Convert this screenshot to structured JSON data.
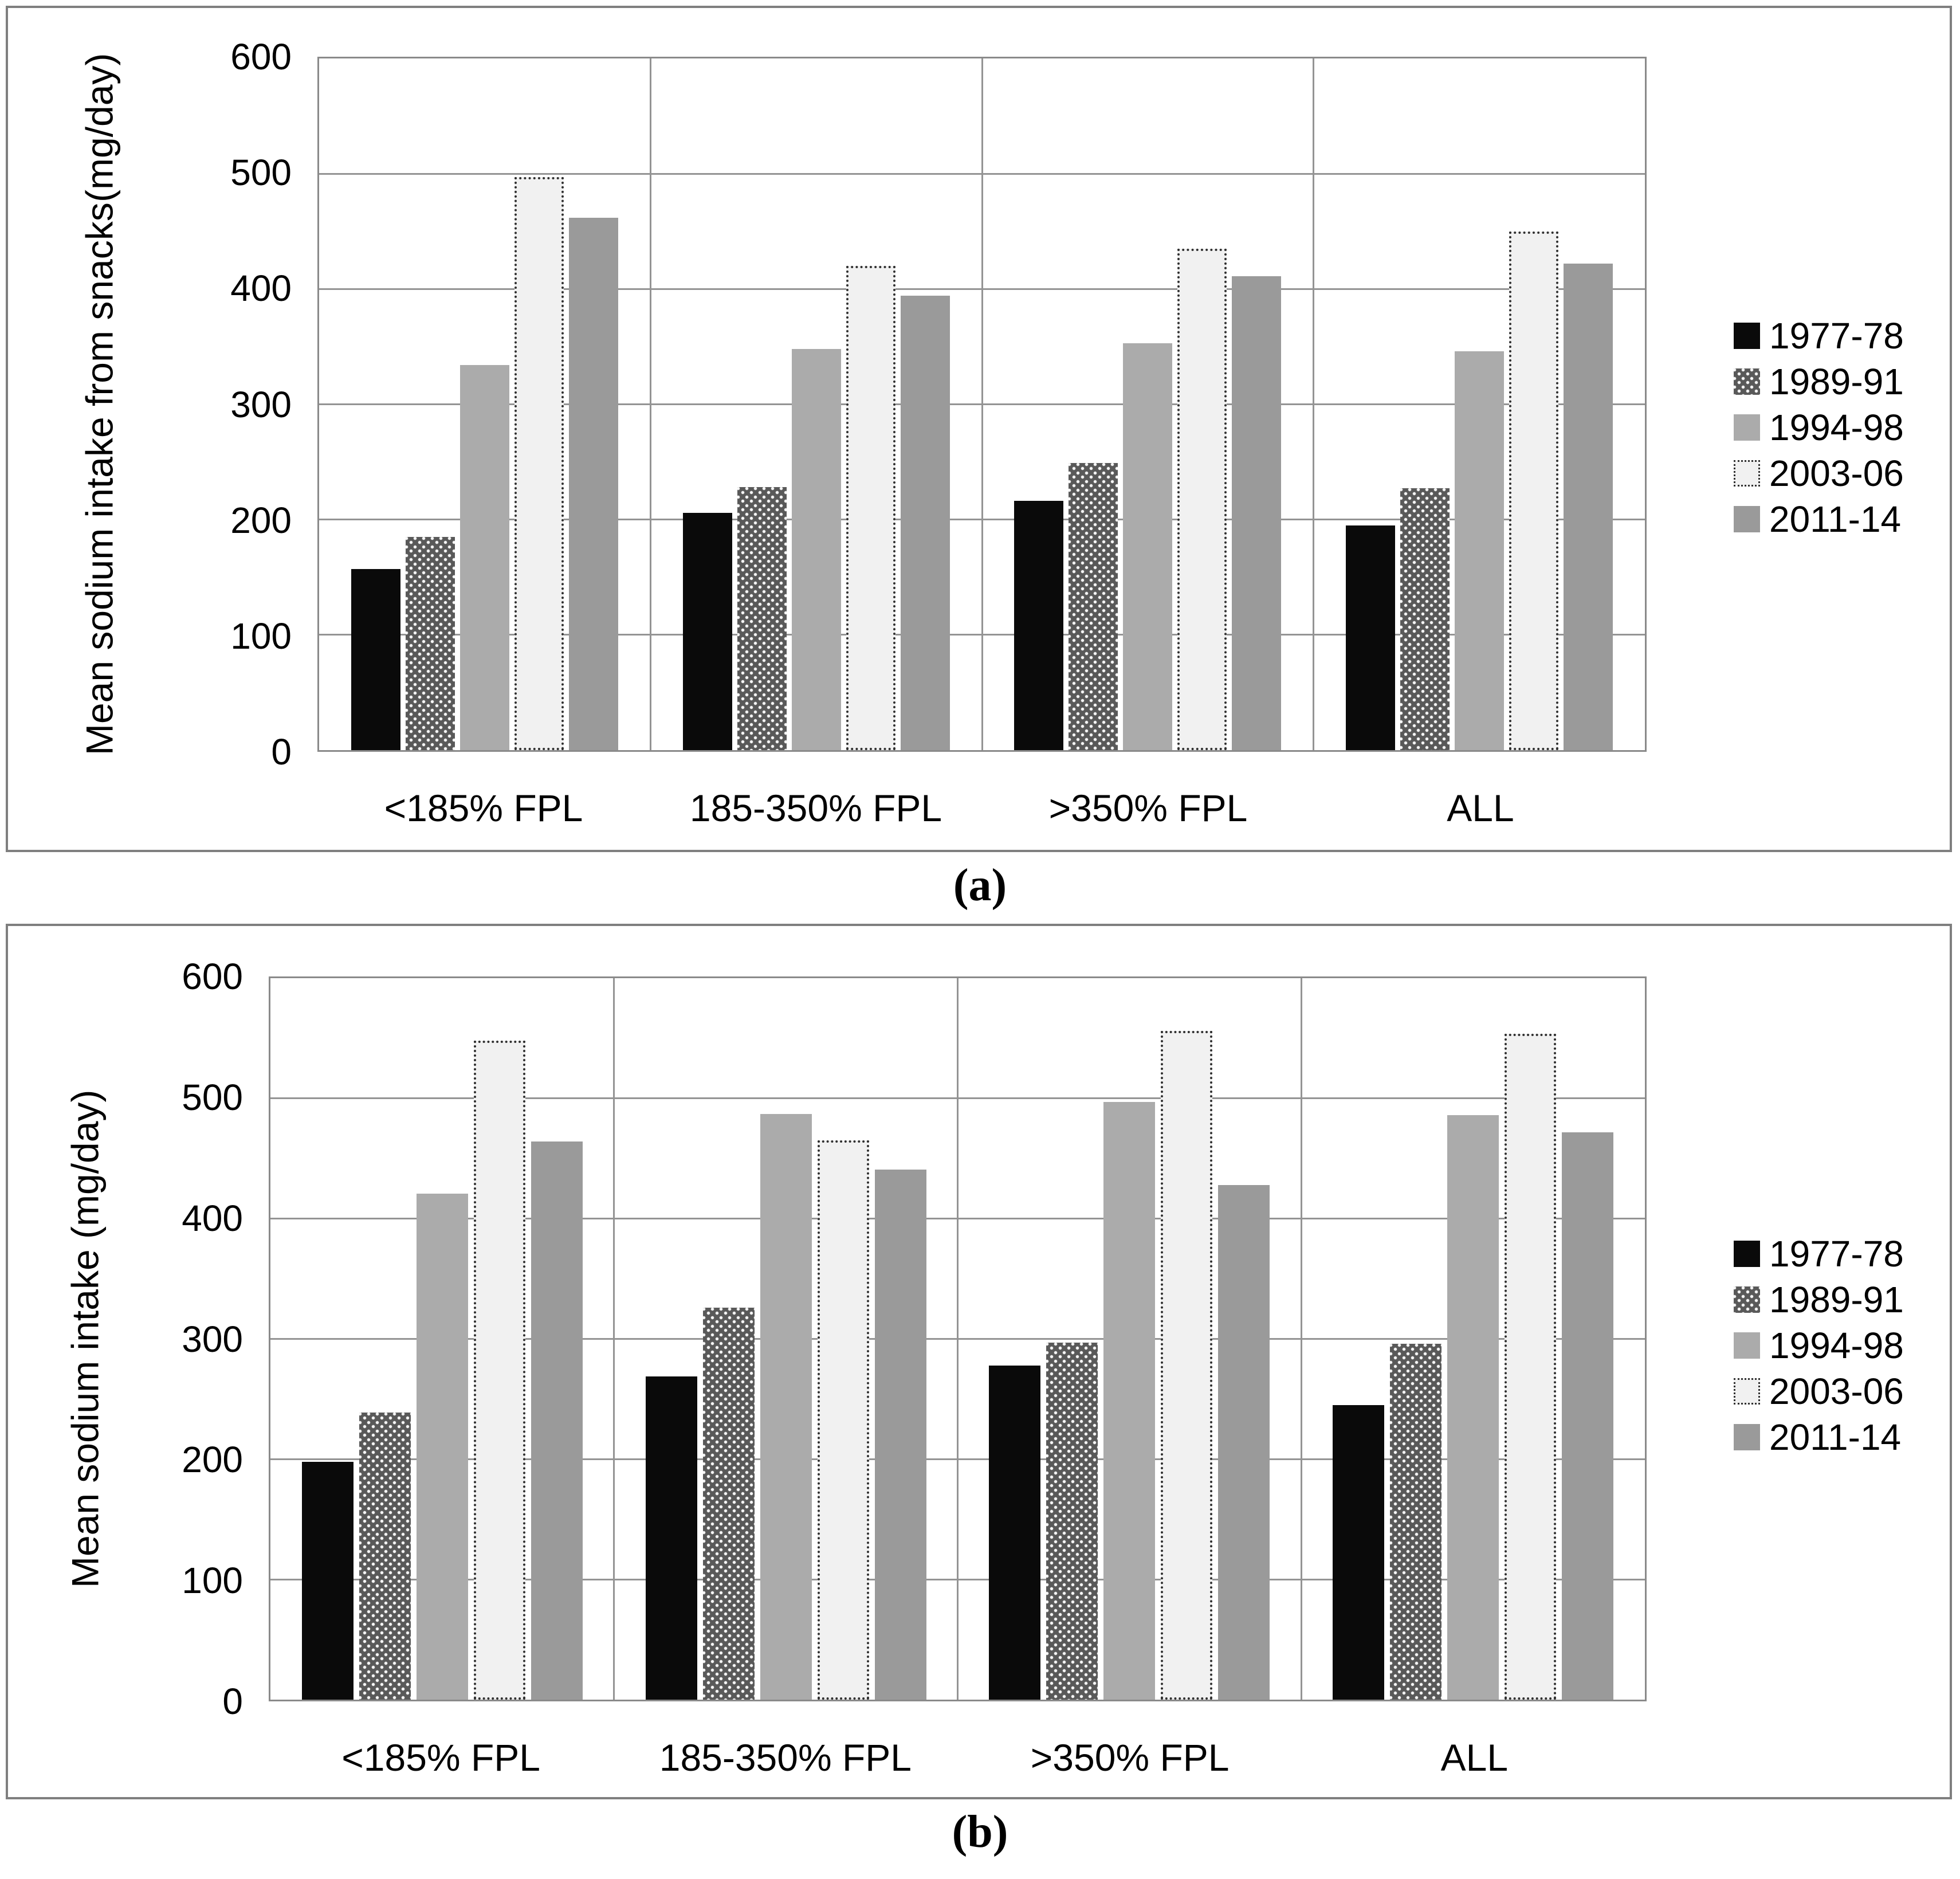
{
  "figure": {
    "background": "#ffffff",
    "panel_border_color": "#7f7f7f",
    "grid_color": "#949494",
    "axis_frame_color": "#8a8a8a"
  },
  "chart_data": [
    {
      "id": "a",
      "type": "bar",
      "caption": "(a)",
      "ylabel_lines": [
        "Mean sodium intake from snacks",
        "(mg/day)"
      ],
      "categories": [
        "<185% FPL",
        "185-350% FPL",
        ">350% FPL",
        "ALL"
      ],
      "series": [
        {
          "name": "1977-78",
          "fill": "#0a0a0a",
          "pattern": "solid",
          "values": [
            157,
            206,
            216,
            195
          ]
        },
        {
          "name": "1989-91",
          "fill": "#595959",
          "pattern": "white-dots",
          "values": [
            185,
            228,
            249,
            227
          ]
        },
        {
          "name": "1994-98",
          "fill": "#ababab",
          "pattern": "solid",
          "values": [
            334,
            348,
            353,
            346
          ]
        },
        {
          "name": "2003-06",
          "fill": "#f1f1f1",
          "pattern": "dotted-border",
          "border_color": "#2f2f2f",
          "values": [
            497,
            420,
            435,
            450
          ]
        },
        {
          "name": "2011-14",
          "fill": "#9a9a9a",
          "pattern": "solid",
          "values": [
            462,
            394,
            411,
            422
          ]
        }
      ],
      "ylim": [
        0,
        600
      ],
      "yticks": [
        0,
        100,
        200,
        300,
        400,
        500,
        600
      ],
      "grid": true,
      "legend_position": "right"
    },
    {
      "id": "b",
      "type": "bar",
      "caption": "(b)",
      "ylabel_lines": [
        "Mean sodium intake (mg/day)"
      ],
      "categories": [
        "<185% FPL",
        "185-350% FPL",
        ">350% FPL",
        "ALL"
      ],
      "series": [
        {
          "name": "1977-78",
          "fill": "#0a0a0a",
          "pattern": "solid",
          "values": [
            198,
            269,
            278,
            245
          ]
        },
        {
          "name": "1989-91",
          "fill": "#595959",
          "pattern": "white-dots",
          "values": [
            239,
            326,
            297,
            296
          ]
        },
        {
          "name": "1994-98",
          "fill": "#ababab",
          "pattern": "solid",
          "values": [
            421,
            487,
            497,
            486
          ]
        },
        {
          "name": "2003-06",
          "fill": "#f1f1f1",
          "pattern": "dotted-border",
          "border_color": "#2f2f2f",
          "values": [
            548,
            465,
            556,
            554
          ]
        },
        {
          "name": "2011-14",
          "fill": "#9a9a9a",
          "pattern": "solid",
          "values": [
            464,
            441,
            428,
            472
          ]
        }
      ],
      "ylim": [
        0,
        600
      ],
      "yticks": [
        0,
        100,
        200,
        300,
        400,
        500,
        600
      ],
      "grid": true,
      "legend_position": "right"
    }
  ]
}
